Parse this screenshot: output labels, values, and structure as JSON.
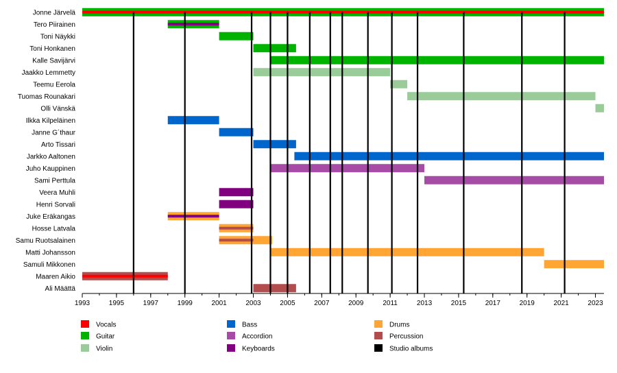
{
  "chart_data": {
    "type": "timeline",
    "title": "",
    "xlabel": "",
    "ylabel": "",
    "xlim": [
      1993,
      2023.5
    ],
    "x_ticks": [
      1993,
      1995,
      1997,
      1999,
      2001,
      2003,
      2005,
      2007,
      2009,
      2011,
      2013,
      2015,
      2017,
      2019,
      2021,
      2023
    ],
    "roles": {
      "vocals": {
        "label": "Vocals",
        "color": "#ff0000"
      },
      "guitar": {
        "label": "Guitar",
        "color": "#00b300"
      },
      "violin": {
        "label": "Violin",
        "color": "#99cc99"
      },
      "bass": {
        "label": "Bass",
        "color": "#0066cc"
      },
      "accordion": {
        "label": "Accordion",
        "color": "#a64ca6"
      },
      "keyboards": {
        "label": "Keyboards",
        "color": "#800080"
      },
      "drums": {
        "label": "Drums",
        "color": "#ffa533"
      },
      "percussion": {
        "label": "Percussion",
        "color": "#b34d4d"
      },
      "albums": {
        "label": "Studio albums",
        "color": "#000000"
      }
    },
    "legend_order": [
      [
        "vocals",
        "guitar",
        "violin"
      ],
      [
        "bass",
        "accordion",
        "keyboards"
      ],
      [
        "drums",
        "percussion",
        "albums"
      ]
    ],
    "studio_albums": [
      1996,
      1999,
      2002.9,
      2004,
      2005,
      2006.3,
      2007.5,
      2008.2,
      2009.7,
      2011.1,
      2012.6,
      2015.3,
      2018.7,
      2021.2
    ],
    "members": [
      {
        "name": "Jonne Järvelä",
        "periods": [
          {
            "start": 1993,
            "end": 2023.5,
            "role": "guitar",
            "secondary": "vocals"
          }
        ]
      },
      {
        "name": "Tero Piirainen",
        "periods": [
          {
            "start": 1998,
            "end": 2001,
            "role": "guitar",
            "secondary": "keyboards"
          }
        ]
      },
      {
        "name": "Toni Näykki",
        "periods": [
          {
            "start": 2001,
            "end": 2003,
            "role": "guitar"
          }
        ]
      },
      {
        "name": "Toni Honkanen",
        "periods": [
          {
            "start": 2003,
            "end": 2005.5,
            "role": "guitar"
          }
        ]
      },
      {
        "name": "Kalle Savijärvi",
        "periods": [
          {
            "start": 2004,
            "end": 2023.5,
            "role": "guitar"
          }
        ]
      },
      {
        "name": "Jaakko Lemmetty",
        "periods": [
          {
            "start": 2003,
            "end": 2011,
            "role": "violin"
          }
        ]
      },
      {
        "name": "Teemu Eerola",
        "periods": [
          {
            "start": 2011,
            "end": 2012,
            "role": "violin"
          }
        ]
      },
      {
        "name": "Tuomas Rounakari",
        "periods": [
          {
            "start": 2012,
            "end": 2023,
            "role": "violin"
          }
        ]
      },
      {
        "name": "Olli Vänskä",
        "periods": [
          {
            "start": 2023,
            "end": 2023.5,
            "role": "violin"
          }
        ]
      },
      {
        "name": "Ilkka Kilpeläinen",
        "periods": [
          {
            "start": 1998,
            "end": 2001,
            "role": "bass"
          }
        ]
      },
      {
        "name": "Janne G´thaur",
        "periods": [
          {
            "start": 2001,
            "end": 2003,
            "role": "bass"
          }
        ]
      },
      {
        "name": "Arto Tissari",
        "periods": [
          {
            "start": 2003,
            "end": 2005.5,
            "role": "bass"
          }
        ]
      },
      {
        "name": "Jarkko Aaltonen",
        "periods": [
          {
            "start": 2005.4,
            "end": 2023.5,
            "role": "bass"
          }
        ]
      },
      {
        "name": "Juho Kauppinen",
        "periods": [
          {
            "start": 2004,
            "end": 2013,
            "role": "accordion"
          }
        ]
      },
      {
        "name": "Sami Perttula",
        "periods": [
          {
            "start": 2013,
            "end": 2023.5,
            "role": "accordion"
          }
        ]
      },
      {
        "name": "Veera Muhli",
        "periods": [
          {
            "start": 2001,
            "end": 2003,
            "role": "keyboards"
          }
        ]
      },
      {
        "name": "Henri Sorvali",
        "periods": [
          {
            "start": 2001,
            "end": 2003,
            "role": "keyboards"
          }
        ]
      },
      {
        "name": "Juke Eräkangas",
        "periods": [
          {
            "start": 1998,
            "end": 2001,
            "role": "drums",
            "secondary": "keyboards"
          }
        ]
      },
      {
        "name": "Hosse Latvala",
        "periods": [
          {
            "start": 2001,
            "end": 2003,
            "role": "drums",
            "secondary": "percussion"
          }
        ]
      },
      {
        "name": "Samu Ruotsalainen",
        "periods": [
          {
            "start": 2001,
            "end": 2003,
            "role": "drums",
            "secondary": "percussion"
          },
          {
            "start": 2003,
            "end": 2004.1,
            "role": "drums"
          }
        ]
      },
      {
        "name": "Matti Johansson",
        "periods": [
          {
            "start": 2004,
            "end": 2020,
            "role": "drums"
          }
        ]
      },
      {
        "name": "Samuli Mikkonen",
        "periods": [
          {
            "start": 2020,
            "end": 2023.5,
            "role": "drums"
          }
        ]
      },
      {
        "name": "Maaren Aikio",
        "periods": [
          {
            "start": 1993,
            "end": 1998,
            "role": "percussion",
            "secondary": "vocals"
          }
        ]
      },
      {
        "name": "Ali Määttä",
        "periods": [
          {
            "start": 2003,
            "end": 2005.5,
            "role": "percussion"
          }
        ]
      }
    ]
  }
}
